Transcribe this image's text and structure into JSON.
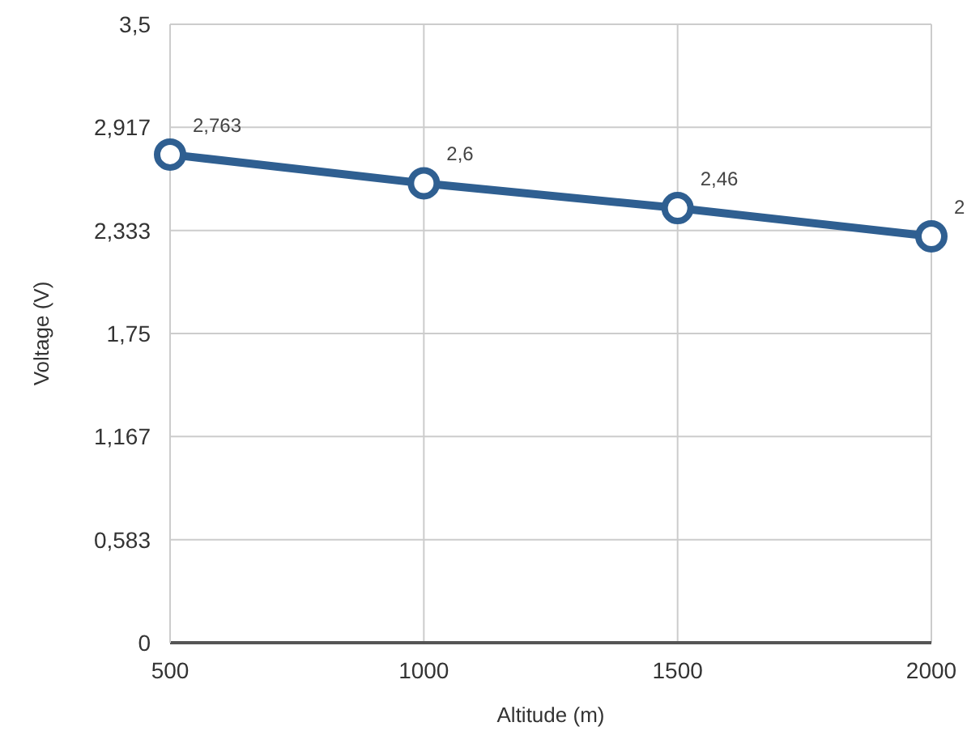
{
  "chart_data": {
    "type": "line",
    "xlabel": "Altitude (m)",
    "ylabel": "Voltage (V)",
    "x": [
      500,
      1000,
      1500,
      2000
    ],
    "series": [
      {
        "color": "#2f5f91",
        "values": [
          2.763,
          2.6,
          2.46,
          2.3
        ],
        "value_labels": [
          "2,763",
          "2,6",
          "2,46",
          "2"
        ]
      }
    ],
    "xlim": [
      500,
      2000
    ],
    "xticks": [
      500,
      1000,
      1500,
      2000
    ],
    "ylim": [
      0,
      3.5
    ],
    "yticks": [
      0,
      {
        "value": 0.583,
        "label": "0,583"
      },
      {
        "value": 1.167,
        "label": "1,167"
      },
      {
        "value": 1.75,
        "label": "1,75"
      },
      {
        "value": 2.333,
        "label": "2,333"
      },
      {
        "value": 2.917,
        "label": "2,917"
      },
      {
        "value": 3.5,
        "label": "3,5"
      }
    ],
    "grid": true,
    "marker": "circle",
    "line_style": "solid"
  }
}
